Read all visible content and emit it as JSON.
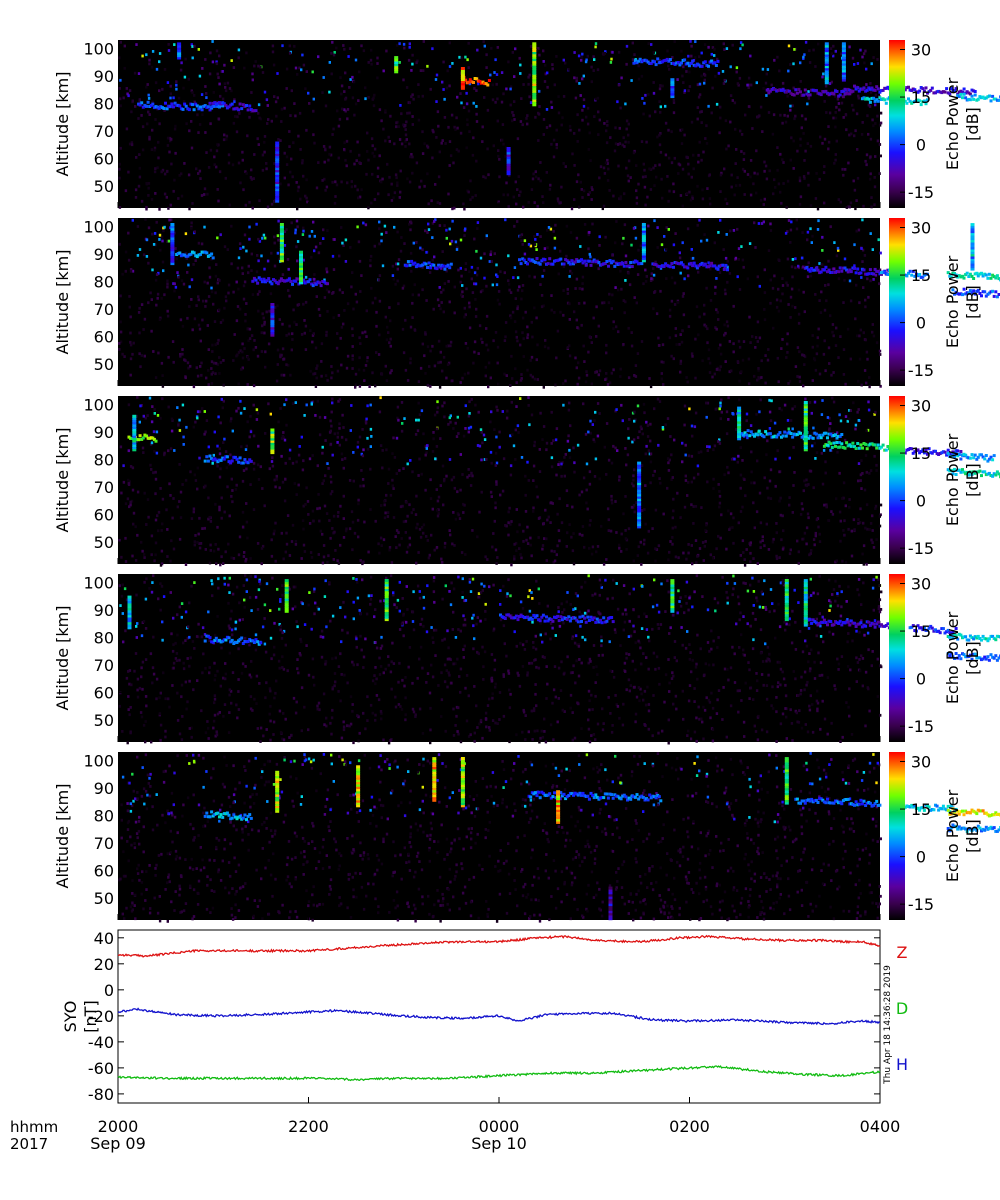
{
  "chart_data": [
    {
      "type": "heatmap",
      "panel": 1,
      "ylabel": "Altitude [km]",
      "yticks": [
        50,
        60,
        70,
        80,
        90,
        100
      ],
      "ylim": [
        42,
        103
      ],
      "colorbar": {
        "label_line1": "Echo Power",
        "label_line2": "[dB]",
        "ticks": [
          -15,
          0,
          15,
          30
        ],
        "range": [
          -20,
          33
        ]
      },
      "features": [
        {
          "t": 0.2,
          "alt": 80,
          "dt": 0.9,
          "db": 0
        },
        {
          "t": 0.95,
          "alt": 80,
          "dt": 0.5,
          "db": -5
        },
        {
          "t": 3.6,
          "alt": 89,
          "dt": 0.3,
          "db": 30
        },
        {
          "t": 7.6,
          "alt": 86,
          "dt": 1.4,
          "db": -6
        },
        {
          "t": 5.4,
          "alt": 96,
          "dt": 0.9,
          "db": 0
        },
        {
          "t": 6.8,
          "alt": 85,
          "dt": 0.9,
          "db": -8
        },
        {
          "t": 7.8,
          "alt": 82,
          "dt": 0.7,
          "db": 8
        },
        {
          "t": 8.8,
          "alt": 83,
          "dt": 0.6,
          "db": 6
        }
      ],
      "columns": [
        {
          "t": 0.62,
          "from": 97,
          "to": 103,
          "db": 0
        },
        {
          "t": 2.9,
          "from": 92,
          "to": 98,
          "db": 15
        },
        {
          "t": 1.65,
          "from": 45,
          "to": 67,
          "db": -3
        },
        {
          "t": 3.6,
          "from": 86,
          "to": 94,
          "db": 28
        },
        {
          "t": 4.08,
          "from": 55,
          "to": 65,
          "db": -4
        },
        {
          "t": 4.35,
          "from": 80,
          "to": 103,
          "db": 20
        },
        {
          "t": 5.8,
          "from": 83,
          "to": 90,
          "db": 0
        },
        {
          "t": 7.42,
          "from": 88,
          "to": 103,
          "db": 4
        },
        {
          "t": 7.6,
          "from": 89,
          "to": 103,
          "db": 2
        }
      ],
      "seed": 11
    },
    {
      "type": "heatmap",
      "panel": 2,
      "ylabel": "Altitude [km]",
      "yticks": [
        50,
        60,
        70,
        80,
        90,
        100
      ],
      "ylim": [
        42,
        103
      ],
      "colorbar": {
        "label_line1": "Echo Power",
        "label_line2": "[dB]",
        "ticks": [
          -15,
          0,
          15,
          30
        ],
        "range": [
          -20,
          33
        ]
      },
      "features": [
        {
          "t": 0.6,
          "alt": 91,
          "dt": 0.4,
          "db": 4
        },
        {
          "t": 1.4,
          "alt": 81,
          "dt": 0.8,
          "db": -4
        },
        {
          "t": 3.0,
          "alt": 87,
          "dt": 0.5,
          "db": 0
        },
        {
          "t": 4.2,
          "alt": 88,
          "dt": 1.3,
          "db": -3
        },
        {
          "t": 5.6,
          "alt": 87,
          "dt": 0.8,
          "db": -5
        },
        {
          "t": 7.2,
          "alt": 85,
          "dt": 0.9,
          "db": -5
        },
        {
          "t": 8.0,
          "alt": 84,
          "dt": 0.5,
          "db": 3
        },
        {
          "t": 8.7,
          "alt": 83,
          "dt": 0.7,
          "db": 10
        },
        {
          "t": 8.75,
          "alt": 77,
          "dt": 0.5,
          "db": 0
        }
      ],
      "columns": [
        {
          "t": 0.55,
          "from": 87,
          "to": 102,
          "db": 0
        },
        {
          "t": 1.6,
          "from": 61,
          "to": 73,
          "db": -4
        },
        {
          "t": 1.7,
          "from": 88,
          "to": 102,
          "db": 15
        },
        {
          "t": 1.9,
          "from": 80,
          "to": 92,
          "db": 15
        },
        {
          "t": 5.5,
          "from": 88,
          "to": 102,
          "db": 4
        },
        {
          "t": 8.95,
          "from": 85,
          "to": 102,
          "db": 6
        }
      ],
      "seed": 23
    },
    {
      "type": "heatmap",
      "panel": 3,
      "ylabel": "Altitude [km]",
      "yticks": [
        50,
        60,
        70,
        80,
        90,
        100
      ],
      "ylim": [
        42,
        103
      ],
      "colorbar": {
        "label_line1": "Echo Power",
        "label_line2": "[dB]",
        "ticks": [
          -15,
          0,
          15,
          30
        ],
        "range": [
          -20,
          33
        ]
      },
      "features": [
        {
          "t": 0.1,
          "alt": 89,
          "dt": 0.3,
          "db": 20
        },
        {
          "t": 0.9,
          "alt": 81,
          "dt": 0.5,
          "db": 0
        },
        {
          "t": 6.5,
          "alt": 90,
          "dt": 1.1,
          "db": 5
        },
        {
          "t": 7.4,
          "alt": 86,
          "dt": 0.7,
          "db": 12
        },
        {
          "t": 8.1,
          "alt": 84,
          "dt": 0.8,
          "db": -4
        },
        {
          "t": 8.7,
          "alt": 82,
          "dt": 0.5,
          "db": 5
        },
        {
          "t": 8.7,
          "alt": 76,
          "dt": 0.9,
          "db": 10
        }
      ],
      "columns": [
        {
          "t": 0.15,
          "from": 84,
          "to": 97,
          "db": 8
        },
        {
          "t": 1.6,
          "from": 83,
          "to": 92,
          "db": 18
        },
        {
          "t": 5.45,
          "from": 56,
          "to": 80,
          "db": 2
        },
        {
          "t": 7.2,
          "from": 84,
          "to": 102,
          "db": 14
        },
        {
          "t": 6.5,
          "from": 88,
          "to": 100,
          "db": 10
        }
      ],
      "seed": 37
    },
    {
      "type": "heatmap",
      "panel": 4,
      "ylabel": "Altitude [km]",
      "yticks": [
        50,
        60,
        70,
        80,
        90,
        100
      ],
      "ylim": [
        42,
        103
      ],
      "colorbar": {
        "label_line1": "Echo Power",
        "label_line2": "[dB]",
        "ticks": [
          -15,
          0,
          15,
          30
        ],
        "range": [
          -20,
          33
        ]
      },
      "features": [
        {
          "t": 0.9,
          "alt": 80,
          "dt": 0.6,
          "db": 2
        },
        {
          "t": 4.0,
          "alt": 88,
          "dt": 1.2,
          "db": -3
        },
        {
          "t": 7.2,
          "alt": 86,
          "dt": 1.0,
          "db": -6
        },
        {
          "t": 8.3,
          "alt": 84,
          "dt": 0.5,
          "db": -2
        },
        {
          "t": 8.7,
          "alt": 81,
          "dt": 0.6,
          "db": 8
        },
        {
          "t": 8.7,
          "alt": 74,
          "dt": 0.7,
          "db": 2
        }
      ],
      "columns": [
        {
          "t": 1.75,
          "from": 90,
          "to": 102,
          "db": 18
        },
        {
          "t": 2.8,
          "from": 87,
          "to": 102,
          "db": 16
        },
        {
          "t": 5.8,
          "from": 90,
          "to": 102,
          "db": 14
        },
        {
          "t": 7.0,
          "from": 87,
          "to": 102,
          "db": 12
        },
        {
          "t": 7.2,
          "from": 85,
          "to": 102,
          "db": 10
        },
        {
          "t": 0.1,
          "from": 84,
          "to": 96,
          "db": 6
        }
      ],
      "seed": 51
    },
    {
      "type": "heatmap",
      "panel": 5,
      "ylabel": "Altitude [km]",
      "yticks": [
        50,
        60,
        70,
        80,
        90,
        100
      ],
      "ylim": [
        42,
        103
      ],
      "colorbar": {
        "label_line1": "Echo Power",
        "label_line2": "[dB]",
        "ticks": [
          -15,
          0,
          15,
          30
        ],
        "range": [
          -20,
          33
        ]
      },
      "features": [
        {
          "t": 0.9,
          "alt": 81,
          "dt": 0.5,
          "db": 6
        },
        {
          "t": 4.3,
          "alt": 88,
          "dt": 1.4,
          "db": 2
        },
        {
          "t": 7.1,
          "alt": 86,
          "dt": 0.9,
          "db": 2
        },
        {
          "t": 8.1,
          "alt": 84,
          "dt": 0.7,
          "db": 6
        },
        {
          "t": 8.7,
          "alt": 82,
          "dt": 0.6,
          "db": 24
        },
        {
          "t": 8.7,
          "alt": 76,
          "dt": 0.8,
          "db": 4
        }
      ],
      "columns": [
        {
          "t": 1.65,
          "from": 82,
          "to": 97,
          "db": 22
        },
        {
          "t": 2.5,
          "from": 84,
          "to": 99,
          "db": 24
        },
        {
          "t": 3.3,
          "from": 86,
          "to": 102,
          "db": 24
        },
        {
          "t": 3.6,
          "from": 84,
          "to": 102,
          "db": 20
        },
        {
          "t": 5.15,
          "from": 43,
          "to": 55,
          "db": -8
        },
        {
          "t": 7.0,
          "from": 85,
          "to": 102,
          "db": 15
        },
        {
          "t": 4.6,
          "from": 78,
          "to": 90,
          "db": 25
        }
      ],
      "seed": 67
    },
    {
      "type": "line",
      "ylabel_line1": "SYO",
      "ylabel_line2": "[nT]",
      "yticks": [
        40,
        20,
        0,
        -20,
        -40,
        -60,
        -80
      ],
      "ylim": [
        -87,
        46
      ],
      "xlim_hours": [
        0,
        8
      ],
      "series": [
        {
          "name": "Z",
          "color": "#dd1111",
          "anchors": [
            [
              0,
              27
            ],
            [
              0.3,
              26
            ],
            [
              0.8,
              30
            ],
            [
              1.5,
              30
            ],
            [
              2.0,
              30
            ],
            [
              2.6,
              33
            ],
            [
              3.2,
              36
            ],
            [
              3.6,
              37
            ],
            [
              4.0,
              37
            ],
            [
              4.4,
              40
            ],
            [
              4.7,
              41
            ],
            [
              5.0,
              38
            ],
            [
              5.5,
              37
            ],
            [
              5.9,
              40
            ],
            [
              6.2,
              41
            ],
            [
              6.6,
              39
            ],
            [
              7.0,
              38
            ],
            [
              7.4,
              38
            ],
            [
              7.6,
              37
            ],
            [
              7.8,
              37
            ],
            [
              8.0,
              34
            ]
          ]
        },
        {
          "name": "D",
          "color": "#11bb11",
          "anchors": [
            [
              0,
              -67
            ],
            [
              0.5,
              -68
            ],
            [
              1.0,
              -68
            ],
            [
              1.5,
              -68
            ],
            [
              2.0,
              -68
            ],
            [
              2.5,
              -69
            ],
            [
              3.0,
              -68
            ],
            [
              3.5,
              -68
            ],
            [
              4.0,
              -66
            ],
            [
              4.5,
              -64
            ],
            [
              5.0,
              -64
            ],
            [
              5.5,
              -62
            ],
            [
              6.0,
              -60
            ],
            [
              6.3,
              -59
            ],
            [
              6.8,
              -63
            ],
            [
              7.2,
              -65
            ],
            [
              7.6,
              -66
            ],
            [
              8.0,
              -63
            ]
          ]
        },
        {
          "name": "H",
          "color": "#1111cc",
          "anchors": [
            [
              0,
              -17
            ],
            [
              0.2,
              -15
            ],
            [
              0.6,
              -19
            ],
            [
              1.0,
              -20
            ],
            [
              1.5,
              -19
            ],
            [
              2.0,
              -17
            ],
            [
              2.3,
              -16
            ],
            [
              2.8,
              -19
            ],
            [
              3.2,
              -21
            ],
            [
              3.6,
              -22
            ],
            [
              4.0,
              -20
            ],
            [
              4.2,
              -24
            ],
            [
              4.5,
              -19
            ],
            [
              4.9,
              -18
            ],
            [
              5.2,
              -18
            ],
            [
              5.6,
              -23
            ],
            [
              6.0,
              -24
            ],
            [
              6.5,
              -23
            ],
            [
              7.0,
              -25
            ],
            [
              7.5,
              -26
            ],
            [
              7.8,
              -24
            ],
            [
              8.0,
              -25
            ]
          ]
        }
      ],
      "legend": [
        "Z",
        "D",
        "H"
      ],
      "timestamp": "Thu Apr 18 14:36:28 2019"
    }
  ],
  "time_axis": {
    "label_line1": "hhmm",
    "label_line2": "2017",
    "ticks": [
      {
        "hour": 0,
        "label": "2000",
        "date": "Sep 09"
      },
      {
        "hour": 2,
        "label": "2200",
        "date": ""
      },
      {
        "hour": 4,
        "label": "0000",
        "date": "Sep 10"
      },
      {
        "hour": 6,
        "label": "0200",
        "date": ""
      },
      {
        "hour": 8,
        "label": "0400",
        "date": ""
      }
    ],
    "range_hours": [
      0,
      8
    ]
  }
}
